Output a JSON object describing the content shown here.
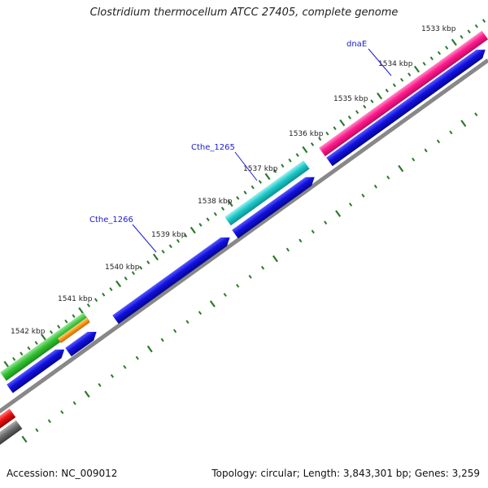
{
  "title": "Clostridium thermocellum ATCC 27405, complete genome",
  "accession": "Accession: NC_009012",
  "summary": "Topology: circular; Length: 3,843,301 bp; Genes: 3,259",
  "ticks": [
    "1533 kbp",
    "1534 kbp",
    "1535 kbp",
    "1536 kbp",
    "1537 kbp",
    "1538 kbp",
    "1539 kbp",
    "1540 kbp",
    "1541 kbp",
    "1542 kbp"
  ],
  "genes": [
    "dnaE",
    "Cthe_1265",
    "Cthe_1266"
  ],
  "colors": {
    "pink": "#ff1a8c",
    "teal": "#1ccaca",
    "blue": "#1010e0",
    "green": "#33c233",
    "orange": "#ff9a1a",
    "red": "#ee1111",
    "gray": "#6e6e6e",
    "tick": "#2a7a2a",
    "label_blue": "#1b1bd0"
  }
}
